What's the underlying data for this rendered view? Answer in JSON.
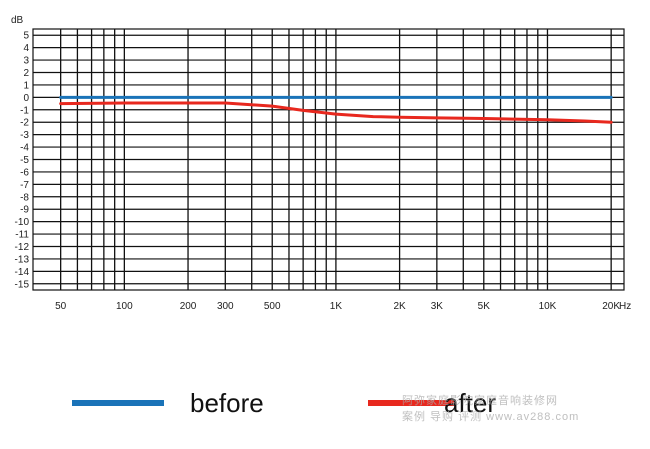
{
  "chart_data": {
    "type": "line",
    "xscale": "log",
    "xlim": [
      37,
      23000
    ],
    "ylim": [
      -15.5,
      5.5
    ],
    "yunit": "dB",
    "xunit": "Hz",
    "yticks": [
      5,
      4,
      3,
      2,
      1,
      0,
      -1,
      -2,
      -3,
      -4,
      -5,
      -6,
      -7,
      -8,
      -9,
      -10,
      -11,
      -12,
      -13,
      -14,
      -15
    ],
    "xticks": [
      {
        "value": 50,
        "label": "50"
      },
      {
        "value": 100,
        "label": "100"
      },
      {
        "value": 200,
        "label": "200"
      },
      {
        "value": 300,
        "label": "300"
      },
      {
        "value": 500,
        "label": "500"
      },
      {
        "value": 1000,
        "label": "1K"
      },
      {
        "value": 2000,
        "label": "2K"
      },
      {
        "value": 3000,
        "label": "3K"
      },
      {
        "value": 5000,
        "label": "5K"
      },
      {
        "value": 10000,
        "label": "10K"
      },
      {
        "value": 20000,
        "label": "20K"
      }
    ],
    "grid": true,
    "series": [
      {
        "name": "before",
        "color": "#1a73b8",
        "x": [
          50,
          20000
        ],
        "y": [
          0,
          0
        ]
      },
      {
        "name": "after",
        "color": "#e8281e",
        "x": [
          50,
          100,
          200,
          300,
          500,
          700,
          1000,
          1500,
          2000,
          3000,
          5000,
          7000,
          10000,
          15000,
          20000
        ],
        "y": [
          -0.5,
          -0.45,
          -0.45,
          -0.45,
          -0.7,
          -1.05,
          -1.35,
          -1.55,
          -1.6,
          -1.65,
          -1.7,
          -1.75,
          -1.8,
          -1.9,
          -2.0
        ]
      }
    ]
  },
  "legend": {
    "before_label": "before",
    "after_label": "after"
  },
  "watermark": {
    "line1": "阿弥家庭影院家庭音响装修网",
    "line2": "案例 导购 评测 www.av288.com"
  },
  "colors": {
    "before": "#1a73b8",
    "after": "#e8281e",
    "grid": "#111111"
  }
}
